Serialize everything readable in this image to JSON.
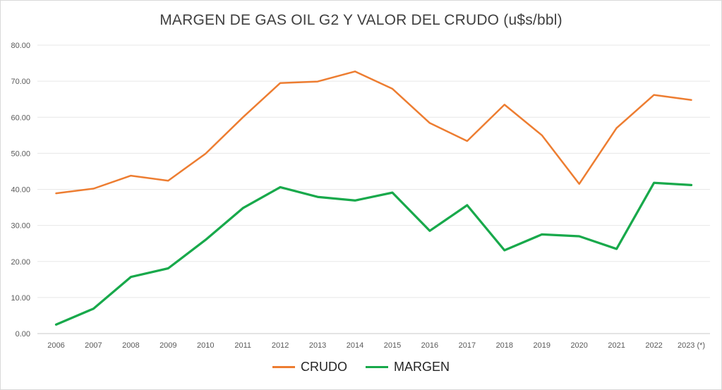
{
  "chart_data": {
    "type": "line",
    "title": "MARGEN DE GAS OIL G2 Y VALOR DEL CRUDO (u$s/bbl)",
    "categories": [
      "2006",
      "2007",
      "2008",
      "2009",
      "2010",
      "2011",
      "2012",
      "2013",
      "2014",
      "2015",
      "2016",
      "2017",
      "2018",
      "2019",
      "2020",
      "2021",
      "2022",
      "2023 (*)"
    ],
    "series": [
      {
        "name": "CRUDO",
        "color": "#ED7D31",
        "values": [
          38.9,
          40.2,
          43.8,
          42.4,
          49.9,
          60.0,
          69.5,
          69.9,
          72.7,
          67.9,
          58.4,
          53.4,
          63.5,
          55.0,
          41.5,
          57.0,
          66.2,
          64.8
        ]
      },
      {
        "name": "MARGEN",
        "color": "#18A94B",
        "values": [
          2.5,
          6.9,
          15.7,
          18.1,
          26.0,
          34.8,
          40.6,
          37.9,
          36.9,
          39.1,
          28.5,
          35.6,
          23.1,
          27.5,
          27.0,
          23.5,
          41.8,
          41.2
        ]
      }
    ],
    "ylim": [
      0,
      80
    ],
    "y_ticks": [
      "0.00",
      "10.00",
      "20.00",
      "30.00",
      "40.00",
      "50.00",
      "60.00",
      "70.00",
      "80.00"
    ],
    "xlabel": "",
    "ylabel": "",
    "grid": true,
    "legend_position": "bottom",
    "colors": {
      "grid": "#e7e7e7",
      "axis_line": "#c9c9c9",
      "tick_text": "#595959",
      "title_text": "#404040",
      "legend_text": "#262626"
    }
  }
}
